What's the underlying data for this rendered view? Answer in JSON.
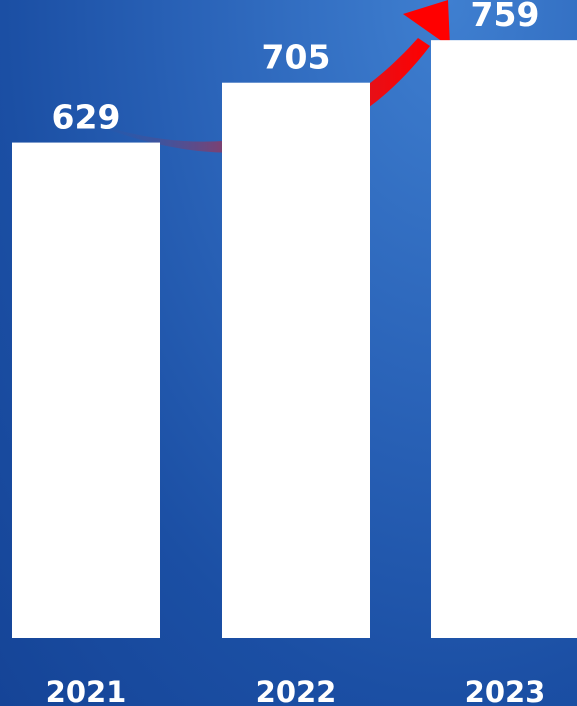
{
  "chart_data": {
    "type": "bar",
    "categories": [
      "2021",
      "2022",
      "2023"
    ],
    "values": [
      629,
      705,
      759
    ],
    "title": "",
    "xlabel": "",
    "ylabel": "",
    "ylim": [
      0,
      810
    ],
    "grid": false,
    "legend": "none",
    "colors": {
      "bar": "#ffffff",
      "background": "#1b4fa4",
      "arrow_start": "#1e5bb2",
      "arrow_end": "#ff0000"
    }
  },
  "decorations": {
    "trend_arrow_icon": "trend-arrow-icon"
  }
}
